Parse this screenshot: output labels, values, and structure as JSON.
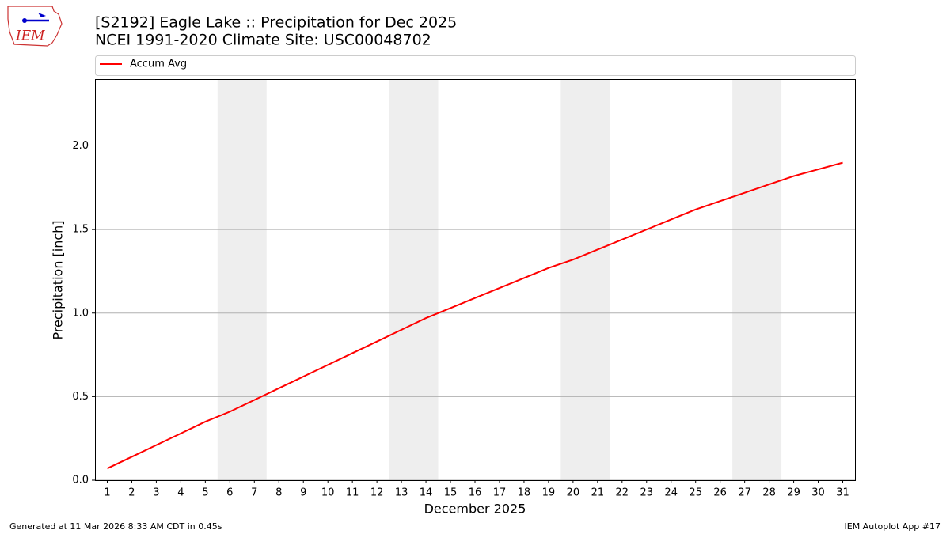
{
  "chart_data": {
    "type": "line",
    "title": "[S2192] Eagle Lake :: Precipitation for Dec 2025",
    "subtitle": "NCEI 1991-2020 Climate Site: USC00048702",
    "xlabel": "December 2025",
    "ylabel": "Precipitation [inch]",
    "x": [
      1,
      2,
      3,
      4,
      5,
      6,
      7,
      8,
      9,
      10,
      11,
      12,
      13,
      14,
      15,
      16,
      17,
      18,
      19,
      20,
      21,
      22,
      23,
      24,
      25,
      26,
      27,
      28,
      29,
      30,
      31
    ],
    "series": [
      {
        "name": "Accum Avg",
        "color": "#ff0000",
        "values": [
          0.07,
          0.14,
          0.21,
          0.28,
          0.35,
          0.41,
          0.48,
          0.55,
          0.62,
          0.69,
          0.76,
          0.83,
          0.9,
          0.97,
          1.03,
          1.09,
          1.15,
          1.21,
          1.27,
          1.32,
          1.38,
          1.44,
          1.5,
          1.56,
          1.62,
          1.67,
          1.72,
          1.77,
          1.82,
          1.86,
          1.9
        ]
      }
    ],
    "xlim": [
      0.5,
      31.5
    ],
    "xticks": [
      1,
      2,
      3,
      4,
      5,
      6,
      7,
      8,
      9,
      10,
      11,
      12,
      13,
      14,
      15,
      16,
      17,
      18,
      19,
      20,
      21,
      22,
      23,
      24,
      25,
      26,
      27,
      28,
      29,
      30,
      31
    ],
    "ylim": [
      0,
      2.4
    ],
    "yticks": [
      {
        "value": 0,
        "label": "0.0"
      },
      0.5,
      {
        "value": 1,
        "label": "1.0"
      },
      1.5,
      {
        "value": 2,
        "label": "2.0"
      }
    ],
    "grid": "y",
    "shaded_spans": [
      [
        5.5,
        7.5
      ],
      [
        12.5,
        14.5
      ],
      [
        19.5,
        21.5
      ],
      [
        26.5,
        28.5
      ]
    ],
    "shade_color": "#eeeeee",
    "legend": "top"
  },
  "logo_text": "IEM",
  "footer": {
    "left": "Generated at 11 Mar 2026 8:33 AM CDT in 0.45s",
    "right": "IEM Autoplot App #17"
  }
}
